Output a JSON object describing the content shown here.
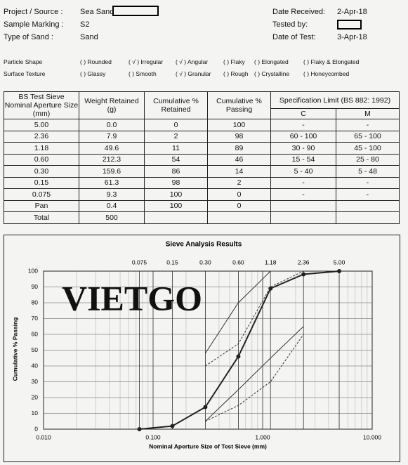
{
  "header": {
    "project_source": {
      "label": "Project / Source :",
      "value": "Sea Sand"
    },
    "sample_marking": {
      "label": "Sample Marking :",
      "value": "S2"
    },
    "type_of_sand": {
      "label": "Type of Sand :",
      "value": "Sand"
    },
    "date_received": {
      "label": "Date Received:",
      "value": "2-Apr-18"
    },
    "tested_by": {
      "label": "Tested by:"
    },
    "date_of_test": {
      "label": "Date of Test:",
      "value": "3-Apr-18"
    }
  },
  "particle_shape": {
    "label": "Particle Shape",
    "options": [
      "( ) Rounded",
      "( √ ) Irregular",
      "( √ ) Angular",
      "( ) Flaky",
      "( ) Elongated",
      "( ) Flaky & Elongated"
    ]
  },
  "surface_texture": {
    "label": "Surface Texture",
    "options": [
      "( ) Glassy",
      "( ) Smooth",
      "( √ ) Granular",
      "( ) Rough",
      "( ) Crystalline",
      "( ) Honeycombed"
    ]
  },
  "table": {
    "headers": [
      "BS Test Sieve Nominal Aperture Size (mm)",
      "Weight Retained (g)",
      "Cumulative % Retained",
      "Cumulative % Passing",
      "Specification Limit (BS 882: 1992)"
    ],
    "subheaders": [
      "C",
      "M"
    ],
    "rows": [
      [
        "5.00",
        "0.0",
        "0",
        "100",
        "-",
        "-"
      ],
      [
        "2.36",
        "7.9",
        "2",
        "98",
        "60 - 100",
        "65 - 100"
      ],
      [
        "1.18",
        "49.6",
        "11",
        "89",
        "30 - 90",
        "45 - 100"
      ],
      [
        "0.60",
        "212.3",
        "54",
        "46",
        "15 - 54",
        "25 - 80"
      ],
      [
        "0.30",
        "159.6",
        "86",
        "14",
        "5 - 40",
        "5 - 48"
      ],
      [
        "0.15",
        "61.3",
        "98",
        "2",
        "-",
        "-"
      ],
      [
        "0.075",
        "9.3",
        "100",
        "0",
        "-",
        "-"
      ],
      [
        "Pan",
        "0.4",
        "100",
        "0"
      ],
      [
        "Total",
        "500"
      ]
    ]
  },
  "chart_data": {
    "type": "line",
    "title": "Sieve Analysis Results",
    "x_label": "Nominal Aperture Size of Test Sieve (mm)",
    "y_label": "Cumulative % Passing",
    "watermark": "VIETGO",
    "log_x": true,
    "xlim": [
      0.01,
      10
    ],
    "xticks": [
      {
        "value": 0.01,
        "label": "0.010"
      },
      {
        "value": 0.1,
        "label": "0.100"
      },
      {
        "value": 1,
        "label": "1.000"
      },
      {
        "value": 10,
        "label": "10.000"
      }
    ],
    "top_ticks": [
      0.075,
      0.15,
      {
        "value": 0.3,
        "label": "0.30"
      },
      {
        "value": 0.6,
        "label": "0.60"
      },
      1.18,
      2.36,
      {
        "value": 5,
        "label": "5.00"
      }
    ],
    "ylim": [
      0,
      100
    ],
    "yticks": [
      0,
      10,
      20,
      30,
      40,
      50,
      60,
      70,
      80,
      90,
      100
    ],
    "grid": true,
    "x": [
      0.075,
      0.15,
      0.3,
      0.6,
      1.18,
      2.36,
      5
    ],
    "series": [
      {
        "color": "#222",
        "width": 2,
        "markers": true,
        "values": [
          0,
          2,
          14,
          46,
          89,
          98,
          100
        ]
      },
      {
        "color": "#333",
        "width": 1,
        "dashed": true,
        "values": [
          null,
          null,
          5,
          15,
          30,
          60,
          null
        ]
      },
      {
        "color": "#333",
        "width": 1,
        "dashed": true,
        "values": [
          null,
          null,
          40,
          54,
          90,
          100,
          null
        ]
      },
      {
        "color": "#333",
        "width": 1,
        "values": [
          null,
          null,
          5,
          25,
          45,
          65,
          null
        ]
      },
      {
        "color": "#333",
        "width": 1,
        "values": [
          null,
          null,
          48,
          80,
          100,
          100,
          null
        ]
      }
    ]
  }
}
